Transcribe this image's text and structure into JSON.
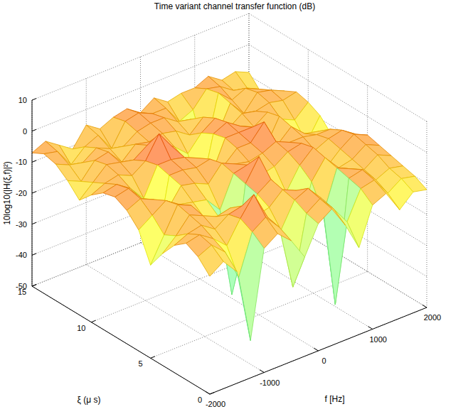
{
  "chart_data": {
    "type": "surface",
    "title": "Time variant channel transfer function (dB)",
    "xlabel": "f [Hz]",
    "ylabel": "ξ (μ s)",
    "zlabel": "10log10(|H(ξ,f)|²)",
    "x": [
      -2000,
      -1750,
      -1500,
      -1250,
      -1000,
      -750,
      -500,
      -250,
      0,
      250,
      500,
      750,
      1000,
      1250,
      1500,
      1750,
      2000
    ],
    "y": [
      0,
      1,
      2,
      3,
      4,
      5,
      6,
      7,
      8,
      9,
      10,
      11,
      12,
      13,
      14,
      15
    ],
    "z": [
      [
        -12,
        -9,
        -14,
        -38,
        -10,
        -7,
        -11,
        -18,
        -9,
        -6,
        -13,
        -22,
        -10,
        -8,
        -15,
        -11,
        -12
      ],
      [
        -8,
        -6,
        -10,
        -20,
        -7,
        -4,
        -9,
        -30,
        -8,
        -5,
        -10,
        -16,
        -7,
        -6,
        -12,
        -9,
        -10
      ],
      [
        -6,
        -5,
        -8,
        -12,
        -5,
        1,
        -8,
        -14,
        -6,
        -4,
        -9,
        -45,
        -6,
        -5,
        -10,
        -8,
        -9
      ],
      [
        -9,
        -7,
        -6,
        -9,
        -6,
        -5,
        -10,
        -9,
        -5,
        -7,
        -12,
        -18,
        -5,
        -7,
        -9,
        -6,
        -8
      ],
      [
        -14,
        -10,
        -5,
        -7,
        -9,
        -8,
        -22,
        -7,
        -4,
        -10,
        -26,
        -10,
        -4,
        -9,
        -8,
        -5,
        -7
      ],
      [
        -20,
        -12,
        -4,
        -6,
        -12,
        -13,
        -40,
        -6,
        1,
        -12,
        -14,
        -7,
        -3,
        -11,
        -7,
        -4,
        -6
      ],
      [
        -11,
        -8,
        -5,
        -8,
        -9,
        -10,
        -15,
        -5,
        -4,
        -9,
        -8,
        -5,
        -4,
        -8,
        -6,
        -5,
        -8
      ],
      [
        -7,
        -5,
        -7,
        -12,
        -6,
        -7,
        -9,
        -4,
        -6,
        -7,
        -6,
        -4,
        -6,
        -6,
        -7,
        -7,
        -10
      ],
      [
        -5,
        -4,
        -9,
        -28,
        -5,
        -5,
        -6,
        -5,
        -9,
        -5,
        -5,
        0,
        -9,
        -5,
        -9,
        -10,
        -13
      ],
      [
        -6,
        -5,
        -8,
        -13,
        -4,
        -4,
        -5,
        -7,
        -14,
        -4,
        -4,
        -4,
        -12,
        -4,
        -12,
        -16,
        -9
      ],
      [
        -9,
        -7,
        -6,
        -8,
        -5,
        2,
        -4,
        -10,
        -24,
        -5,
        -3,
        -6,
        -8,
        -5,
        -9,
        -11,
        -7
      ],
      [
        -13,
        -9,
        -5,
        -6,
        -7,
        -4,
        -5,
        -8,
        -12,
        -7,
        -4,
        -9,
        -6,
        -7,
        -6,
        -7,
        -6
      ],
      [
        -9,
        -11,
        -6,
        -5,
        -10,
        -6,
        -7,
        -6,
        -7,
        -10,
        -6,
        -14,
        -5,
        -10,
        -5,
        -6,
        -8
      ],
      [
        -6,
        -8,
        -9,
        -6,
        -8,
        -9,
        -6,
        -5,
        -5,
        -8,
        -9,
        -22,
        -4,
        -8,
        -6,
        -8,
        -11
      ],
      [
        -5,
        -6,
        -12,
        -8,
        -6,
        -12,
        -5,
        -4,
        -6,
        -6,
        -12,
        -10,
        -5,
        -6,
        -9,
        -10,
        -13
      ],
      [
        -7,
        -5,
        -8,
        -11,
        -5,
        -8,
        -6,
        -5,
        -8,
        -5,
        -8,
        -7,
        -7,
        -5,
        -8,
        -7,
        -9
      ]
    ],
    "xlim": [
      -2000,
      2000
    ],
    "xticks": [
      -2000,
      -1000,
      0,
      1000,
      2000
    ],
    "ylim": [
      0,
      15
    ],
    "yticks": [
      0,
      5,
      10,
      15
    ],
    "zlim": [
      -50,
      10
    ],
    "zticks": [
      -50,
      -40,
      -30,
      -20,
      -10,
      0,
      10
    ],
    "grid": true
  }
}
